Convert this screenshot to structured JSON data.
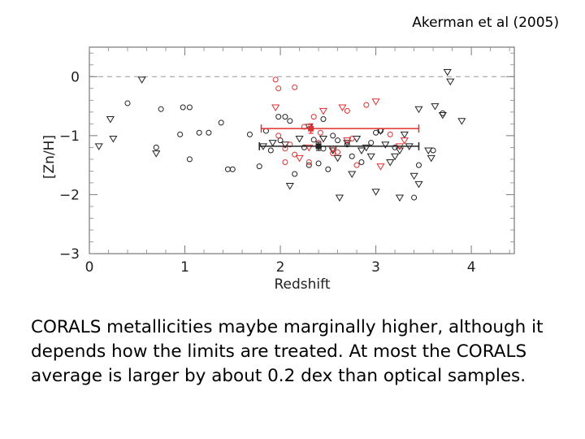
{
  "citation": "Akerman et al (2005)",
  "caption": "CORALS metallicities maybe marginally higher, although it depends how the limits are treated. At most the CORALS average is larger by about 0.2 dex than optical samples.",
  "colors": {
    "optical": "#222222",
    "corals": "#e03030",
    "reference": "#999999"
  },
  "chart_data": {
    "type": "scatter",
    "xlabel": "Redshift",
    "ylabel": "[Zn/H]",
    "xlim": [
      0,
      4.45
    ],
    "ylim": [
      -3,
      0.5
    ],
    "xticks": [
      0,
      1,
      2,
      3,
      4
    ],
    "yticks": [
      0,
      -1,
      -2,
      -3
    ],
    "reference_line_y": 0,
    "grid": false,
    "series": [
      {
        "marker": "circle",
        "color": "#222222",
        "points": [
          [
            0.4,
            -0.45
          ],
          [
            0.75,
            -0.55
          ],
          [
            0.95,
            -0.98
          ],
          [
            0.98,
            -0.52
          ],
          [
            1.05,
            -0.52
          ],
          [
            1.15,
            -0.95
          ],
          [
            1.25,
            -0.95
          ],
          [
            1.38,
            -0.78
          ],
          [
            1.45,
            -1.57
          ],
          [
            1.5,
            -1.57
          ],
          [
            0.7,
            -1.2
          ],
          [
            1.05,
            -1.4
          ],
          [
            1.68,
            -0.98
          ],
          [
            1.78,
            -1.52
          ],
          [
            1.85,
            -0.92
          ],
          [
            1.9,
            -1.25
          ],
          [
            1.98,
            -0.68
          ],
          [
            2.0,
            -1.08
          ],
          [
            2.05,
            -0.68
          ],
          [
            2.1,
            -0.75
          ],
          [
            2.15,
            -1.65
          ],
          [
            2.25,
            -1.2
          ],
          [
            2.3,
            -1.5
          ],
          [
            2.35,
            -1.07
          ],
          [
            2.4,
            -1.47
          ],
          [
            2.45,
            -0.72
          ],
          [
            2.45,
            -1.22
          ],
          [
            2.5,
            -1.57
          ],
          [
            2.55,
            -1.0
          ],
          [
            2.6,
            -1.08
          ],
          [
            2.7,
            -1.15
          ],
          [
            2.75,
            -1.35
          ],
          [
            2.85,
            -1.45
          ],
          [
            2.95,
            -1.12
          ],
          [
            3.0,
            -0.95
          ],
          [
            3.05,
            -0.92
          ],
          [
            3.2,
            -1.2
          ],
          [
            3.4,
            -2.05
          ],
          [
            3.45,
            -1.5
          ],
          [
            3.6,
            -1.25
          ],
          [
            3.7,
            -0.62
          ]
        ]
      },
      {
        "marker": "triangle-down",
        "color": "#222222",
        "points": [
          [
            0.1,
            -1.18
          ],
          [
            0.22,
            -0.72
          ],
          [
            0.25,
            -1.05
          ],
          [
            0.55,
            -0.05
          ],
          [
            0.7,
            -1.3
          ],
          [
            1.82,
            -1.18
          ],
          [
            1.92,
            -1.12
          ],
          [
            2.05,
            -1.15
          ],
          [
            2.1,
            -1.85
          ],
          [
            2.2,
            -1.05
          ],
          [
            2.3,
            -0.85
          ],
          [
            2.45,
            -1.05
          ],
          [
            2.55,
            -1.25
          ],
          [
            2.6,
            -1.38
          ],
          [
            2.62,
            -2.05
          ],
          [
            2.7,
            -1.12
          ],
          [
            2.75,
            -1.65
          ],
          [
            2.8,
            -1.05
          ],
          [
            2.85,
            -1.25
          ],
          [
            2.9,
            -1.2
          ],
          [
            2.95,
            -1.35
          ],
          [
            3.0,
            -1.95
          ],
          [
            3.05,
            -0.92
          ],
          [
            3.1,
            -1.15
          ],
          [
            3.15,
            -1.45
          ],
          [
            3.2,
            -1.35
          ],
          [
            3.25,
            -1.25
          ],
          [
            3.25,
            -2.05
          ],
          [
            3.3,
            -0.98
          ],
          [
            3.35,
            -1.18
          ],
          [
            3.4,
            -1.68
          ],
          [
            3.45,
            -0.55
          ],
          [
            3.55,
            -1.25
          ],
          [
            3.58,
            -1.38
          ],
          [
            3.62,
            -0.5
          ],
          [
            3.7,
            -0.65
          ],
          [
            3.75,
            0.08
          ],
          [
            3.78,
            -0.08
          ],
          [
            3.9,
            -0.75
          ],
          [
            3.45,
            -1.82
          ]
        ]
      },
      {
        "marker": "circle",
        "color": "#e03030",
        "points": [
          [
            1.95,
            -0.05
          ],
          [
            1.98,
            -0.2
          ],
          [
            2.05,
            -1.22
          ],
          [
            2.1,
            -1.15
          ],
          [
            2.15,
            -1.32
          ],
          [
            2.25,
            -0.85
          ],
          [
            2.3,
            -1.45
          ],
          [
            2.35,
            -0.68
          ],
          [
            2.4,
            -1.12
          ],
          [
            2.42,
            -0.95
          ],
          [
            2.55,
            -1.3
          ],
          [
            2.6,
            -1.28
          ],
          [
            2.7,
            -0.58
          ],
          [
            2.75,
            -1.05
          ],
          [
            2.8,
            -1.5
          ],
          [
            2.9,
            -0.48
          ],
          [
            3.15,
            -0.98
          ],
          [
            1.98,
            -1.0
          ],
          [
            2.05,
            -1.45
          ],
          [
            2.15,
            -0.18
          ]
        ]
      },
      {
        "marker": "triangle-down",
        "color": "#e03030",
        "points": [
          [
            1.95,
            -0.52
          ],
          [
            2.2,
            -1.38
          ],
          [
            2.3,
            -1.2
          ],
          [
            2.45,
            -0.58
          ],
          [
            2.55,
            -1.22
          ],
          [
            2.65,
            -0.52
          ],
          [
            2.7,
            -1.08
          ],
          [
            3.0,
            -0.42
          ],
          [
            3.05,
            -1.52
          ],
          [
            3.25,
            -1.18
          ],
          [
            3.3,
            -1.08
          ]
        ]
      }
    ],
    "averages": [
      {
        "name": "CORALS",
        "x": 2.32,
        "y": -0.88,
        "yerr": 0.08,
        "xrange": [
          1.8,
          3.45
        ],
        "color": "#e03030"
      },
      {
        "name": "optical",
        "x": 2.4,
        "y": -1.18,
        "yerr": 0.07,
        "xrange": [
          1.78,
          3.45
        ],
        "color": "#222222"
      }
    ]
  }
}
